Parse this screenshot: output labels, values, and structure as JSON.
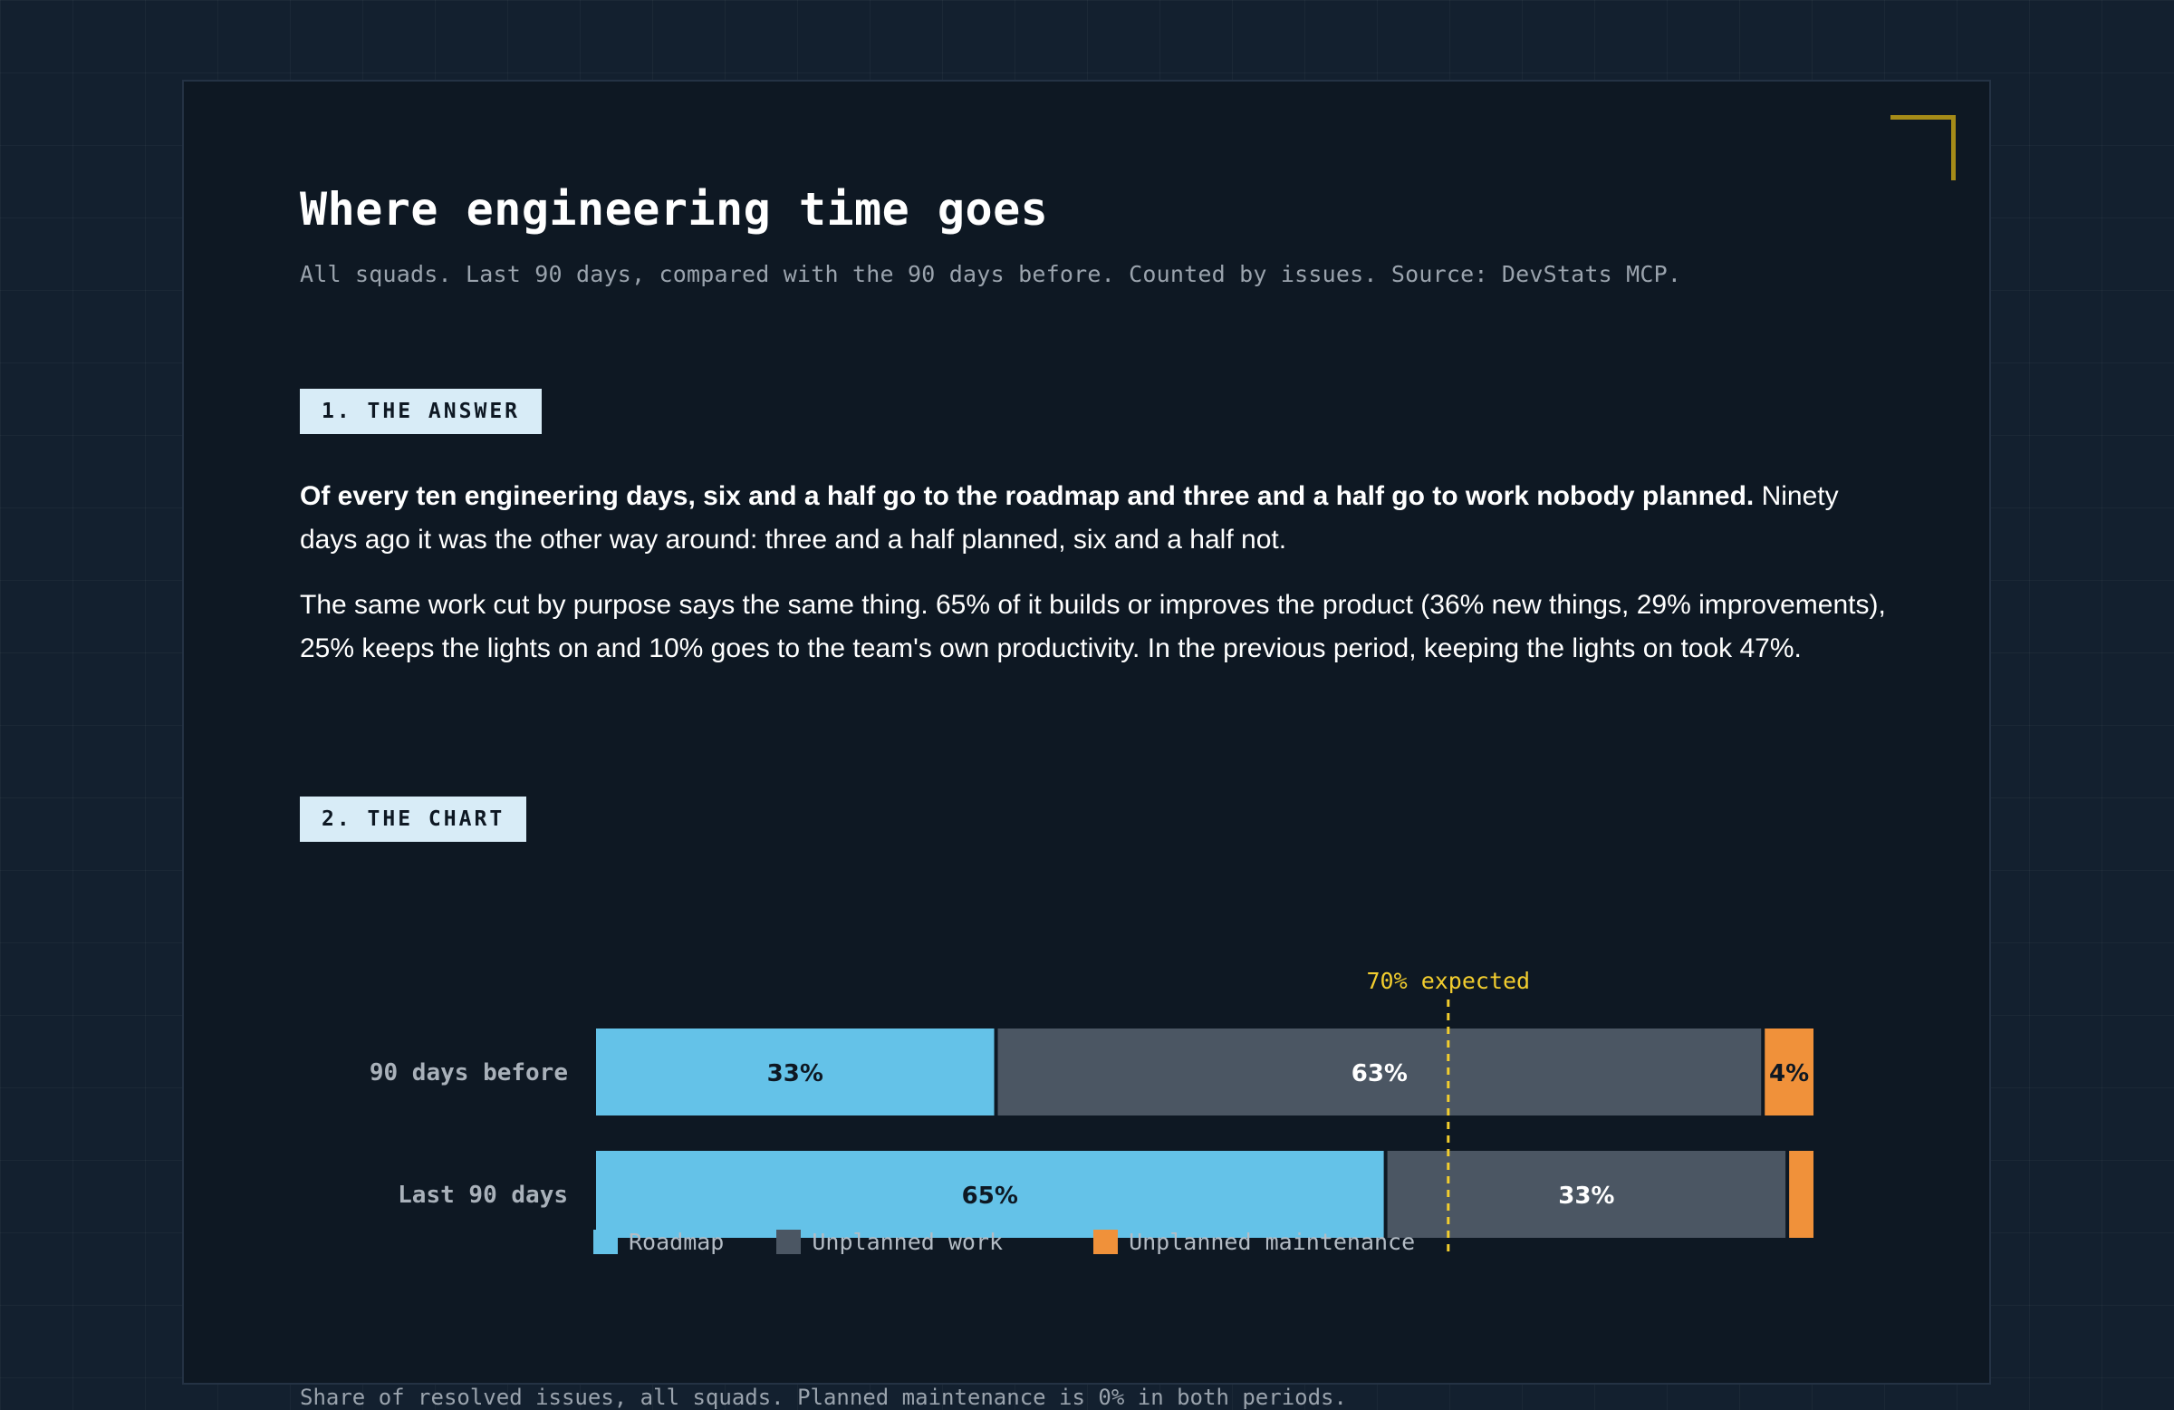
{
  "header": {
    "title": "Where engineering time goes",
    "subtitle": "All squads. Last 90 days, compared with the 90 days before. Counted by issues. Source: DevStats MCP."
  },
  "sections": {
    "answer_label": "1. THE ANSWER",
    "chart_label": "2. THE CHART"
  },
  "answer": {
    "p1_bold": "Of every ten engineering days, six and a half go to the roadmap and three and a half go to work nobody planned.",
    "p1_rest": " Ninety days ago it was the other way around: three and a half planned, six and a half not.",
    "p2": "The same work cut by purpose says the same thing. 65% of it builds or improves the product (36% new things, 29% improvements), 25% keeps the lights on and 10% goes to the team's own productivity. In the previous period, keeping the lights on took 47%."
  },
  "chart_data": {
    "type": "bar",
    "orientation": "horizontal",
    "stacked": true,
    "categories": [
      "90 days before",
      "Last 90 days"
    ],
    "series": [
      {
        "name": "Roadmap",
        "values": [
          33,
          65
        ],
        "labels": [
          "33%",
          "65%"
        ],
        "color": "#64c2e8",
        "label_color": "#0e1823"
      },
      {
        "name": "Unplanned work",
        "values": [
          63,
          33
        ],
        "labels": [
          "63%",
          "33%"
        ],
        "color": "#4b5663",
        "label_color": "#ffffff"
      },
      {
        "name": "Unplanned maintenance",
        "values": [
          4,
          2
        ],
        "labels": [
          "4%",
          ""
        ],
        "color": "#f0913a",
        "label_color": "#0e1823"
      }
    ],
    "xlim": [
      0,
      100
    ],
    "reference_line": {
      "value": 70,
      "label": "70% expected",
      "color": "#f2cd2e"
    },
    "legend_position": "bottom-left",
    "grid": false
  },
  "footnote": "Share of resolved issues, all squads. Planned maintenance is 0% in both periods."
}
